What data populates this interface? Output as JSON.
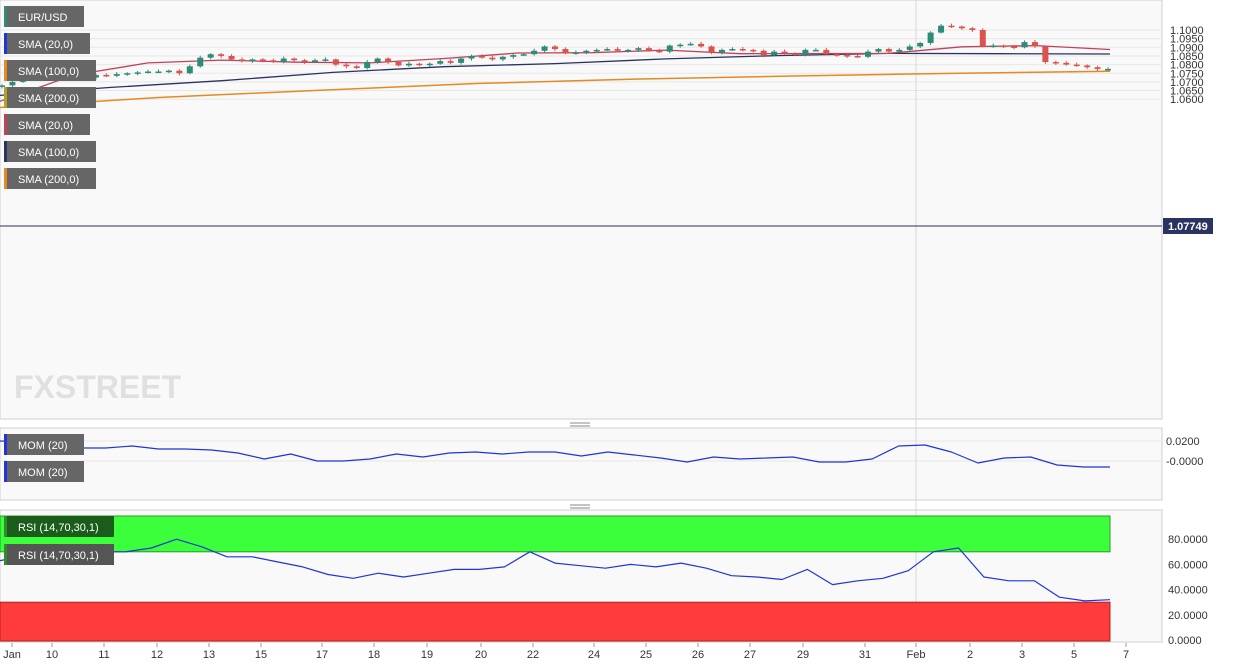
{
  "colors": {
    "up": "#2e8b77",
    "down": "#d9534f",
    "sma20": "#c2415a",
    "sma100": "#2a3361",
    "sma200": "#e58a1f",
    "mom": "#1f35d6",
    "rsi": "#1f35d6",
    "rsi_over": "#3cff3c",
    "rsi_under": "#ff3c3c",
    "label_bg": "#666666"
  },
  "watermark": "FXSTREET",
  "legend": [
    "EUR/USD",
    "SMA (20,0)",
    "SMA (100,0)",
    "SMA (200,0)",
    "SMA (20,0)",
    "SMA (100,0)",
    "SMA (200,0)"
  ],
  "legend_swatches": [
    "#2e8b77",
    "#1f35d6",
    "#e58a1f",
    "#b5a020",
    "#c2415a",
    "#2a3361",
    "#e58a1f"
  ],
  "price_axis": {
    "ticks": [
      "1.1000",
      "1.0950",
      "1.0900",
      "1.0850",
      "1.0800",
      "1.0750",
      "1.0700",
      "1.0650",
      "1.0600"
    ],
    "current": "1.07749"
  },
  "mom_panel": {
    "labels": [
      "MOM (20)",
      "MOM (20)"
    ],
    "ticks": [
      "0.0200",
      "-0.0000"
    ]
  },
  "rsi_panel": {
    "labels": [
      "RSI (14,70,30,1)",
      "RSI (14,70,30,1)"
    ],
    "ticks": [
      "80.0000",
      "60.0000",
      "40.0000",
      "20.0000",
      "0.0000"
    ]
  },
  "x_axis_labels": [
    "Jan",
    "10",
    "11",
    "12",
    "13",
    "15",
    "17",
    "18",
    "19",
    "20",
    "22",
    "24",
    "25",
    "26",
    "27",
    "29",
    "31",
    "Feb",
    "2",
    "3",
    "5",
    "7"
  ],
  "chart_data": {
    "type": "line",
    "series": [
      {
        "name": "EUR/USD",
        "type": "candlestick",
        "close": [
          1.068,
          1.07,
          1.074,
          1.075,
          1.0745,
          1.0735,
          1.073,
          1.0735,
          1.0725,
          1.074,
          1.0735,
          1.0745,
          1.075,
          1.0755,
          1.076,
          1.076,
          1.0765,
          1.075,
          1.079,
          1.084,
          1.086,
          1.085,
          1.083,
          1.082,
          1.083,
          1.0825,
          1.0815,
          1.0835,
          1.0825,
          1.0815,
          1.0825,
          1.083,
          1.08,
          1.079,
          1.078,
          1.0815,
          1.0835,
          1.0815,
          1.0795,
          1.0805,
          1.08,
          1.0805,
          1.082,
          1.081,
          1.0835,
          1.085,
          1.084,
          1.083,
          1.0845,
          1.0855,
          1.086,
          1.088,
          1.0905,
          1.089,
          1.0865,
          1.087,
          1.088,
          1.0885,
          1.089,
          1.088,
          1.0885,
          1.0895,
          1.088,
          1.0875,
          1.091,
          1.0915,
          1.092,
          1.0905,
          1.087,
          1.0885,
          1.089,
          1.0885,
          1.088,
          1.0855,
          1.0875,
          1.0865,
          1.086,
          1.0885,
          1.0885,
          1.086,
          1.0855,
          1.085,
          1.0845,
          1.0875,
          1.089,
          1.0875,
          1.0885,
          1.0905,
          1.0925,
          1.0985,
          1.1025,
          1.102,
          1.101,
          1.1,
          1.0905,
          1.091,
          1.0905,
          1.09,
          1.093,
          1.0905,
          1.0815,
          1.081,
          1.08,
          1.0795,
          1.0785,
          1.0775,
          1.0775
        ],
        "sma20_overlay": [
          1.0588,
          1.074,
          1.081,
          1.0826,
          1.0814,
          1.081,
          1.0835,
          1.0867,
          1.0869,
          1.0884,
          1.0863,
          1.0864,
          1.0865,
          1.0903,
          1.091,
          1.0887
        ],
        "sma100_overlay": [
          1.0622,
          1.0668,
          1.0707,
          1.0755,
          1.0788,
          1.0806,
          1.0833,
          1.0852,
          1.0865,
          1.0863,
          1.0861
        ],
        "sma200_overlay": [
          1.0552,
          1.061,
          1.0651,
          1.0691,
          1.0716,
          1.0734,
          1.0749,
          1.0761
        ]
      },
      {
        "name": "MOM (20)",
        "values": [
          0.02,
          0.019,
          0.021,
          0.013,
          0.013,
          0.015,
          0.012,
          0.012,
          0.011,
          0.008,
          0.002,
          0.007,
          0.0,
          0.0,
          0.002,
          0.007,
          0.004,
          0.008,
          0.009,
          0.007,
          0.009,
          0.009,
          0.005,
          0.009,
          0.006,
          0.003,
          -0.001,
          0.004,
          0.002,
          0.003,
          0.004,
          -0.001,
          -0.001,
          0.002,
          0.015,
          0.016,
          0.009,
          -0.002,
          0.003,
          0.004,
          -0.004,
          -0.006,
          -0.006
        ]
      },
      {
        "name": "RSI (14,70,30,1)",
        "values": [
          63,
          67,
          67,
          70,
          70,
          70,
          73,
          80,
          74,
          66,
          66,
          62,
          58,
          52,
          49,
          53,
          50,
          53,
          56,
          56,
          58,
          70,
          61,
          59,
          57,
          60,
          58,
          61,
          57,
          51,
          50,
          48,
          56,
          44,
          47,
          49,
          55,
          70,
          73,
          50,
          47,
          47,
          34,
          31,
          32
        ]
      }
    ],
    "overbought": 70,
    "oversold": 30,
    "xlabel": "",
    "ylabel": "",
    "ylim": [
      1.055,
      1.1035
    ]
  }
}
